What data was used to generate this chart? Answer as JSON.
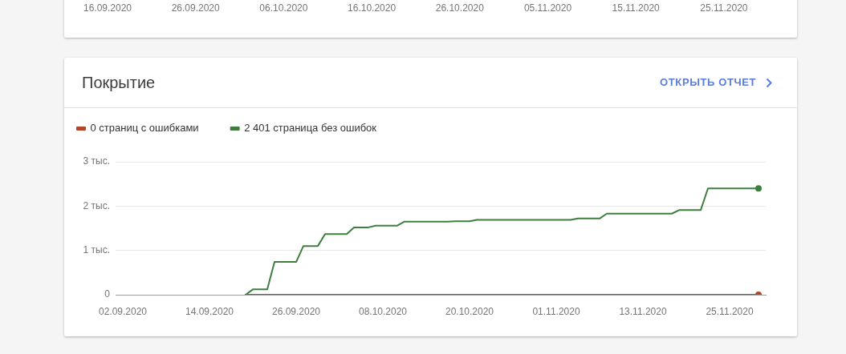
{
  "chart_data": [
    {
      "type": "other",
      "annotations": [
        "16.09.2020",
        "26.09.2020",
        "06.10.2020",
        "16.10.2020",
        "26.10.2020",
        "05.11.2020",
        "15.11.2020",
        "25.11.2020"
      ]
    },
    {
      "type": "line",
      "title": "Покрытие",
      "annotations": [
        "ОТКРЫТЬ ОТЧЕТ"
      ],
      "legend": "top left",
      "grid": "y",
      "line_style": "solid",
      "xlim": [
        "2020-09-01",
        "2020-11-30"
      ],
      "xticks": [
        {
          "value": "2020-09-02",
          "label": "02.09.2020"
        },
        {
          "value": "2020-09-14",
          "label": "14.09.2020"
        },
        {
          "value": "2020-09-26",
          "label": "26.09.2020"
        },
        {
          "value": "2020-10-08",
          "label": "08.10.2020"
        },
        {
          "value": "2020-10-20",
          "label": "20.10.2020"
        },
        {
          "value": "2020-11-01",
          "label": "01.11.2020"
        },
        {
          "value": "2020-11-13",
          "label": "13.11.2020"
        },
        {
          "value": "2020-11-25",
          "label": "25.11.2020"
        }
      ],
      "ylim": [
        0,
        3
      ],
      "yticks": [
        0,
        {
          "value": 1,
          "label": "1 тыс."
        },
        {
          "value": 2,
          "label": "2 тыс."
        },
        {
          "value": 3,
          "label": "3 тыс."
        }
      ],
      "series": [
        {
          "name": "0 страниц с ошибками",
          "color": "#b0472b",
          "x": [
            "2020-09-19",
            "2020-11-29"
          ],
          "values": [
            0,
            0
          ]
        },
        {
          "name": "2 401 страница без ошибок",
          "color": "#3f7e3f",
          "x": [
            "2020-09-19",
            "2020-09-20",
            "2020-09-22",
            "2020-09-23",
            "2020-09-26",
            "2020-09-27",
            "2020-09-29",
            "2020-09-30",
            "2020-10-03",
            "2020-10-04",
            "2020-10-06",
            "2020-10-07",
            "2020-10-10",
            "2020-10-11",
            "2020-10-17",
            "2020-10-18",
            "2020-10-20",
            "2020-10-21",
            "2020-11-03",
            "2020-11-04",
            "2020-11-07",
            "2020-11-08",
            "2020-11-17",
            "2020-11-18",
            "2020-11-21",
            "2020-11-22",
            "2020-11-29"
          ],
          "values": [
            0,
            0.12,
            0.12,
            0.74,
            0.74,
            1.1,
            1.1,
            1.37,
            1.37,
            1.52,
            1.52,
            1.56,
            1.56,
            1.65,
            1.65,
            1.66,
            1.66,
            1.69,
            1.69,
            1.72,
            1.72,
            1.83,
            1.83,
            1.91,
            1.91,
            2.4,
            2.4
          ]
        },
        {
          "type": "scatter",
          "color": "#b0472b",
          "x": [
            "2020-11-29"
          ],
          "values": [
            0
          ]
        },
        {
          "type": "scatter",
          "color": "#3f7e3f",
          "x": [
            "2020-11-29"
          ],
          "values": [
            2.4
          ]
        }
      ]
    }
  ]
}
